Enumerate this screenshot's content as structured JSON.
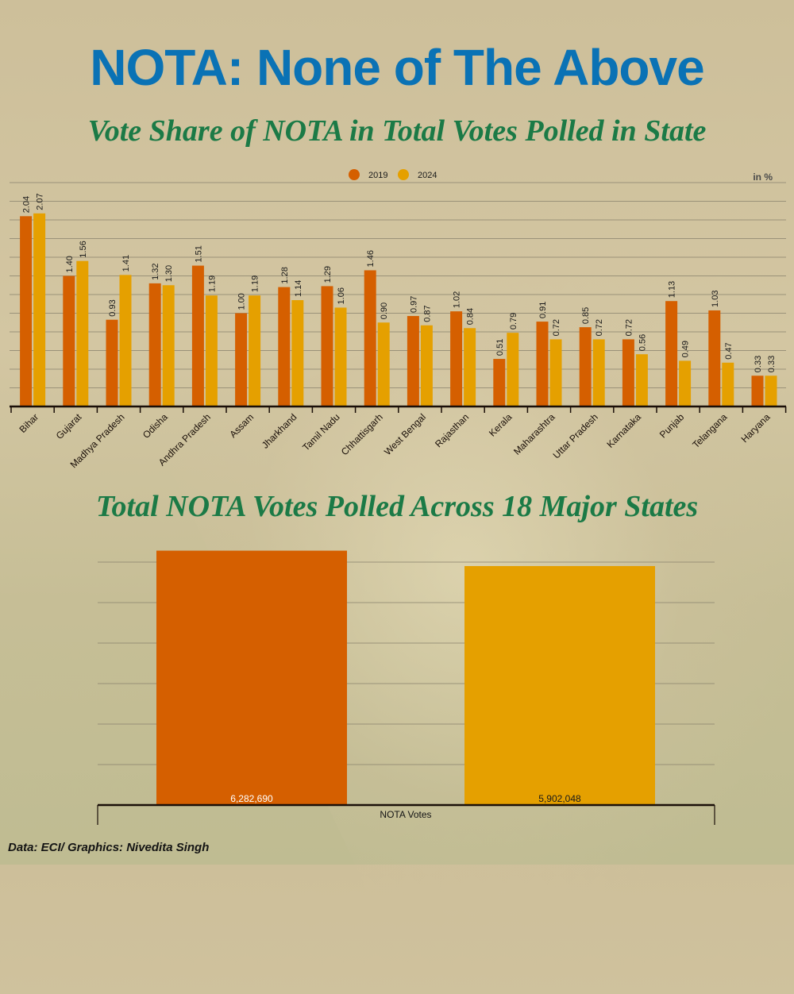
{
  "header": {
    "title": "NOTA: None of The Above"
  },
  "colors": {
    "title": "#0a72b5",
    "subtitle": "#1b7a46",
    "series_2019": "#d55f00",
    "series_2024": "#e5a000",
    "grid": "#8d8670",
    "axis": "#1a0f08"
  },
  "chart_data": [
    {
      "type": "bar",
      "title": "Vote Share of NOTA in Total Votes Polled in State",
      "unit_label": "in %",
      "xlabel": "",
      "ylabel": "",
      "ylim": [
        0,
        2.4
      ],
      "grid": true,
      "grid_step": 0.2,
      "legend_position": "top-center",
      "categories": [
        "Bihar",
        "Gujarat",
        "Madhya Pradesh",
        "Odisha",
        "Andhra Pradesh",
        "Assam",
        "Jharkhand",
        "Tamil Nadu",
        "Chhattisgarh",
        "West Bengal",
        "Rajasthan",
        "Kerala",
        "Maharashtra",
        "Uttar Pradesh",
        "Karnataka",
        "Punjab",
        "Telangana",
        "Haryana"
      ],
      "series": [
        {
          "name": "2019",
          "values": [
            2.04,
            1.4,
            0.93,
            1.32,
            1.51,
            1.0,
            1.28,
            1.29,
            1.46,
            0.97,
            1.02,
            0.51,
            0.91,
            0.85,
            0.72,
            1.13,
            1.03,
            0.33
          ],
          "labels": [
            "2.04",
            "1.40",
            "0.93",
            "1.32",
            "1.51",
            "1.00",
            "1.28",
            "1.29",
            "1.46",
            "0.97",
            "1.02",
            "0.51",
            "0.91",
            "0.85",
            "0.72",
            "1.13",
            "1.03",
            "0.33"
          ]
        },
        {
          "name": "2024",
          "values": [
            2.07,
            1.56,
            1.41,
            1.3,
            1.19,
            1.19,
            1.14,
            1.06,
            0.9,
            0.87,
            0.84,
            0.79,
            0.72,
            0.72,
            0.56,
            0.49,
            0.47,
            0.33
          ],
          "labels": [
            "2.07",
            "1.56",
            "1.41",
            "1.30",
            "1.19",
            "1.19",
            "1.14",
            "1.06",
            "0.90",
            "0.87",
            "0.84",
            "0.79",
            "0.72",
            "0.72",
            "0.56",
            "0.49",
            "0.47",
            "0.33"
          ]
        }
      ]
    },
    {
      "type": "bar",
      "title": "Total NOTA Votes Polled Across 18 Major States",
      "xlabel": "NOTA Votes",
      "ylabel": "",
      "ylim": [
        0,
        6000000
      ],
      "grid": true,
      "grid_step": 1000000,
      "categories": [
        "NOTA Votes"
      ],
      "series": [
        {
          "name": "2019",
          "values": [
            6282690
          ],
          "labels": [
            "6,282,690"
          ]
        },
        {
          "name": "2024",
          "values": [
            5902048
          ],
          "labels": [
            "5,902,048"
          ]
        }
      ]
    }
  ],
  "footer": {
    "credit": "Data: ECI/ Graphics: Nivedita Singh"
  }
}
